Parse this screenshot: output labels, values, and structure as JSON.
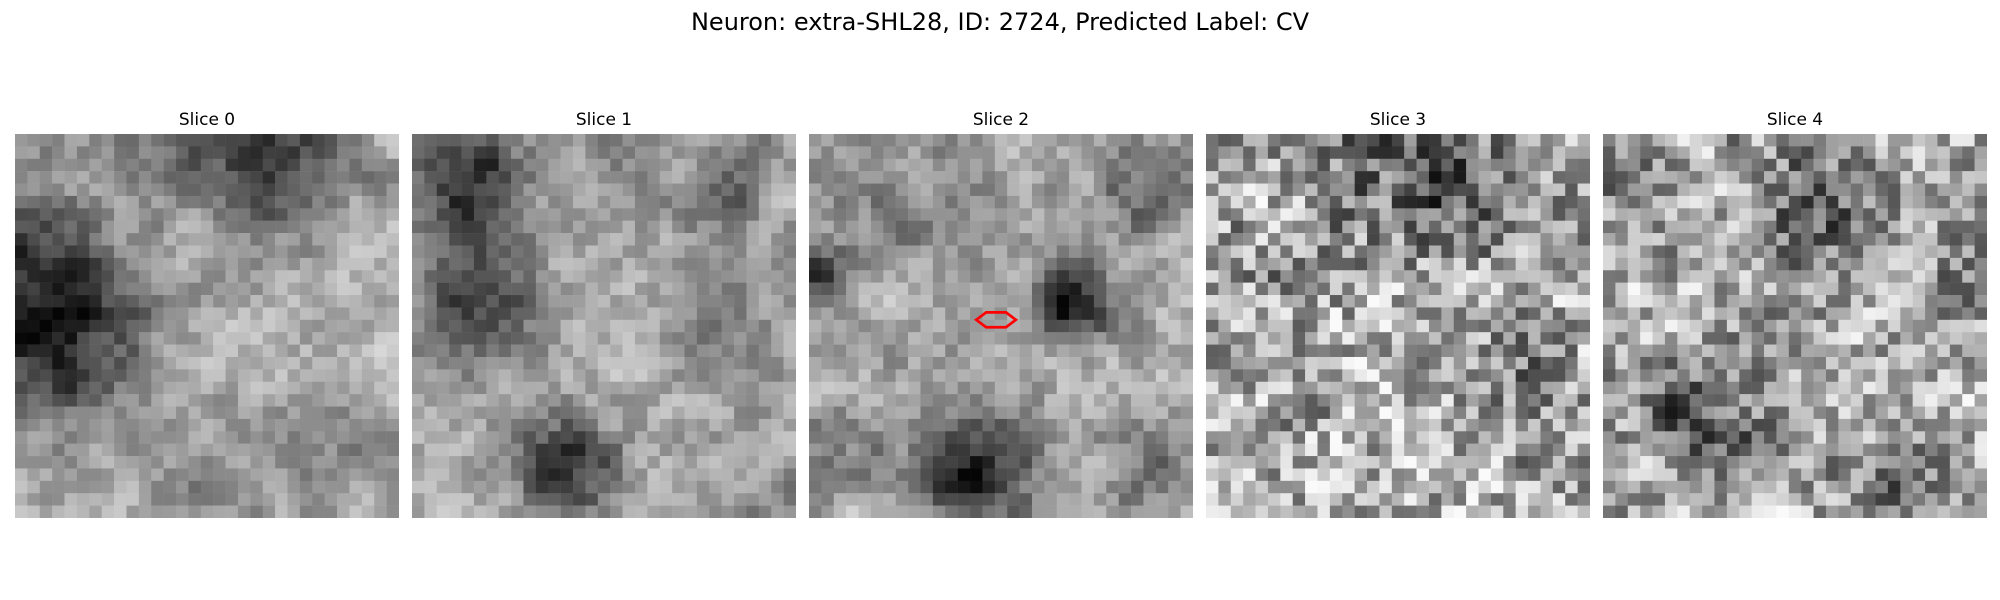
{
  "figure": {
    "title": "Neuron: extra-SHL28, ID: 2724, Predicted Label: CV"
  },
  "grid_size": 31,
  "marker_color": "#ff0000",
  "slices": [
    {
      "label": "Slice 0",
      "seed": 11,
      "noise": 0.1,
      "marker": false
    },
    {
      "label": "Slice 1",
      "seed": 23,
      "noise": 0.1,
      "marker": false
    },
    {
      "label": "Slice 2",
      "seed": 37,
      "noise": 0.11,
      "marker": true
    },
    {
      "label": "Slice 3",
      "seed": 53,
      "noise": 0.3,
      "marker": false
    },
    {
      "label": "Slice 4",
      "seed": 71,
      "noise": 0.26,
      "marker": false
    }
  ]
}
